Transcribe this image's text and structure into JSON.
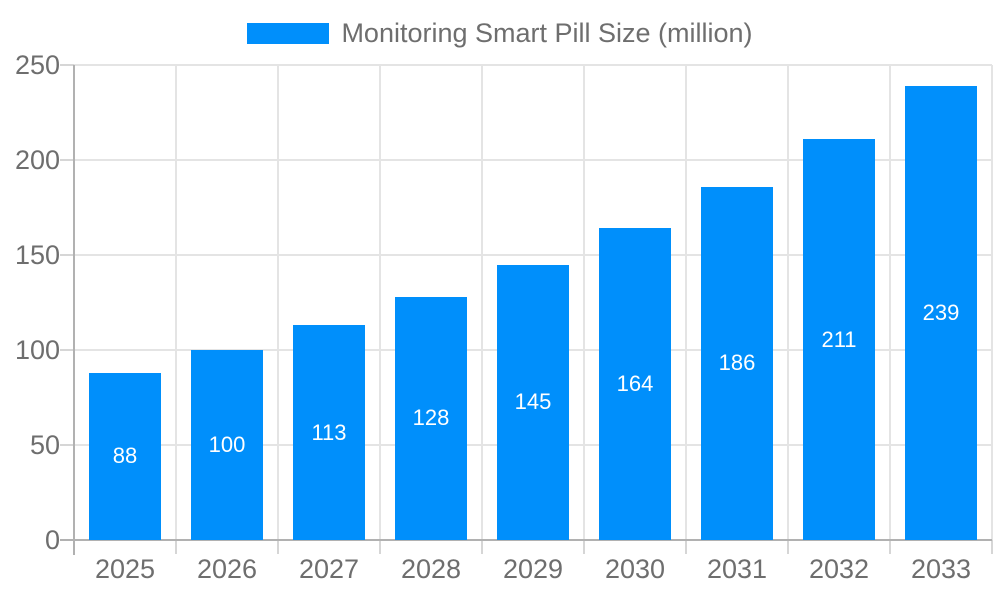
{
  "chart_data": {
    "type": "bar",
    "title": "",
    "legend_label": "Monitoring Smart Pill Size (million)",
    "categories": [
      "2025",
      "2026",
      "2027",
      "2028",
      "2029",
      "2030",
      "2031",
      "2032",
      "2033"
    ],
    "values": [
      88,
      100,
      113,
      128,
      145,
      164,
      186,
      211,
      239
    ],
    "data_labels_shown": true,
    "xlabel": "",
    "ylabel": "",
    "ylim": [
      0,
      250
    ],
    "ytick_labels": [
      "0",
      "50",
      "100",
      "150",
      "200",
      "250"
    ],
    "ytick_values": [
      0,
      50,
      100,
      150,
      200,
      250
    ],
    "grid": true,
    "legend_position": "top-center",
    "colors": {
      "bar": "#008FFB",
      "grid": "#e4e4e4",
      "axis_line": "#b1b1b1",
      "tick": "#d6d6d6",
      "axis_text": "#6e6e6e",
      "bar_label": "#ffffff",
      "background": "#ffffff"
    }
  }
}
